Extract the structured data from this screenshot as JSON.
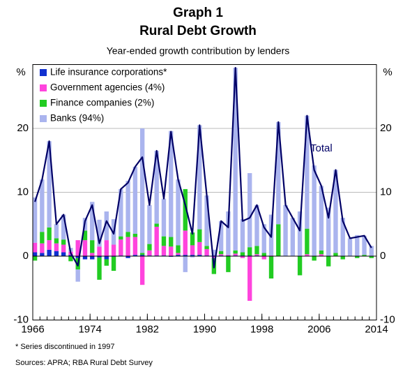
{
  "chart_data": {
    "type": "bar",
    "stacked": true,
    "title": "Graph 1",
    "subtitle": "Rural Debt Growth",
    "caption": "Year-ended growth contribution by lenders",
    "y_label": "%",
    "y2_label": "%",
    "x": [
      1966,
      1967,
      1968,
      1969,
      1970,
      1971,
      1972,
      1973,
      1974,
      1975,
      1976,
      1977,
      1978,
      1979,
      1980,
      1981,
      1982,
      1983,
      1984,
      1985,
      1986,
      1987,
      1988,
      1989,
      1990,
      1991,
      1992,
      1993,
      1994,
      1995,
      1996,
      1997,
      1998,
      1999,
      2000,
      2001,
      2002,
      2003,
      2004,
      2005,
      2006,
      2007,
      2008,
      2009,
      2010,
      2011,
      2012,
      2013
    ],
    "xlim": [
      1966,
      2014
    ],
    "xticks": [
      1966,
      1974,
      1982,
      1990,
      1998,
      2006,
      2014
    ],
    "ylim": [
      -10,
      30
    ],
    "yticks": [
      -10,
      0,
      10,
      20
    ],
    "grid": true,
    "legend": "upper left",
    "series": [
      {
        "name": "Life insurance corporations*",
        "color": "#1030d0",
        "values": [
          0.6,
          0.5,
          1.0,
          0.8,
          0.6,
          0.2,
          -0.3,
          -0.5,
          -0.5,
          -0.2,
          -0.5,
          -0.1,
          0.1,
          -0.3,
          0.2,
          0.2,
          0.1,
          0.1,
          0.1,
          -0.1,
          0.2,
          0.2,
          0.2,
          0.2,
          0.1,
          0.1,
          0.1,
          0.1,
          0.1,
          0.1,
          0.1,
          0.1,
          null,
          null,
          null,
          null,
          null,
          null,
          null,
          null,
          null,
          null,
          null,
          null,
          null,
          null,
          null,
          null
        ]
      },
      {
        "name": "Government agencies (4%)",
        "color": "#ff44dd",
        "values": [
          1.5,
          1.5,
          1.5,
          1.2,
          1.2,
          0.5,
          2.5,
          2.5,
          0.5,
          1.5,
          2.5,
          1.8,
          2.5,
          3.0,
          2.8,
          -4.5,
          0.8,
          4.5,
          1.5,
          1.5,
          0.3,
          3.8,
          1.5,
          2.0,
          1.0,
          -0.3,
          0.2,
          0.1,
          0.3,
          -0.3,
          -7,
          0.2,
          -0.5,
          0.1,
          0,
          0,
          0,
          0,
          0.3,
          0,
          0.3,
          0,
          0,
          0,
          0,
          0,
          0,
          0
        ]
      },
      {
        "name": "Finance companies (2%)",
        "color": "#22cc22",
        "values": [
          -0.7,
          1.8,
          2.0,
          0.8,
          0.8,
          -0.8,
          -1.8,
          1.5,
          2.0,
          -3.5,
          -1.0,
          -2.2,
          0.5,
          0.8,
          0.5,
          0.3,
          1.0,
          0.5,
          1.5,
          1.5,
          1.2,
          6.5,
          2.0,
          2.0,
          0.5,
          -2.5,
          0.5,
          -2.5,
          0.5,
          0.5,
          1.3,
          1.3,
          0.5,
          -3.5,
          5.0,
          0,
          0,
          -3.0,
          4.0,
          -0.7,
          0.6,
          -1.6,
          0.5,
          -0.5,
          0,
          -0.3,
          0.2,
          -0.3
        ]
      },
      {
        "name": "Banks (94%)",
        "color": "#aab4ee",
        "values": [
          7.1,
          8.2,
          13.5,
          2.2,
          3.9,
          0.6,
          -1.9,
          2.0,
          6.0,
          4.2,
          4.5,
          4.0,
          7.4,
          8.0,
          10.5,
          19.5,
          6.1,
          11.4,
          5.9,
          16.6,
          10.3,
          -2.5,
          -0.2,
          16.3,
          7.9,
          0.9,
          4.7,
          6.8,
          28.6,
          5.2,
          11.6,
          6.4,
          4.5,
          6.4,
          16,
          8,
          6,
          7,
          17.7,
          14.2,
          10.1,
          7.6,
          13,
          6,
          2.8,
          3.3,
          3.0,
          1.6
        ]
      }
    ],
    "line": {
      "name": "Total",
      "color": "#000066",
      "values": [
        8.5,
        12,
        18,
        5,
        6.5,
        0.5,
        -1.5,
        5.5,
        8,
        2,
        5.5,
        3.5,
        10.5,
        11.5,
        14,
        15.5,
        8,
        16.5,
        9,
        19.5,
        12,
        8,
        3.5,
        20.5,
        9.5,
        -1.8,
        5.5,
        4.5,
        29.5,
        5.5,
        6,
        8,
        4.5,
        3,
        21,
        8,
        6,
        4,
        22,
        13.5,
        11,
        6,
        13.5,
        5.5,
        2.8,
        3,
        3.2,
        1.3
      ]
    },
    "footnote": "*  Series discontinued in 1997",
    "source": "Sources: APRA; RBA Rural Debt Survey"
  }
}
